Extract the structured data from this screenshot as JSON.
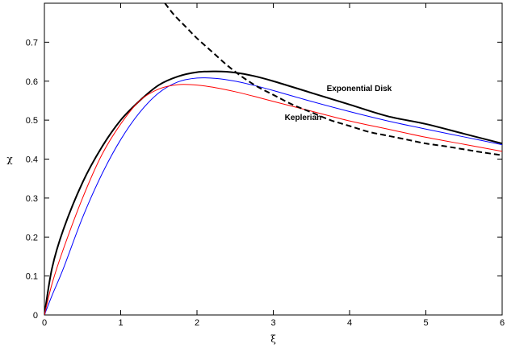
{
  "chart_data": {
    "type": "line",
    "title": "",
    "xlabel": "ξ",
    "ylabel": "χ",
    "xlim": [
      0,
      6
    ],
    "ylim": [
      0,
      0.8
    ],
    "x_ticks": [
      0,
      1,
      2,
      3,
      4,
      5,
      6
    ],
    "x_tick_labels": [
      "0",
      "1",
      "2",
      "3",
      "4",
      "5",
      "6"
    ],
    "y_ticks": [
      0,
      0.1,
      0.2,
      0.3,
      0.4,
      0.5,
      0.6,
      0.7
    ],
    "y_tick_labels": [
      "0",
      "0.1",
      "0.2",
      "0.3",
      "0.4",
      "0.5",
      "0.6",
      "0.7"
    ],
    "grid": false,
    "annotations": [
      {
        "text": "Exponential Disk",
        "x": 3.7,
        "y": 0.575
      },
      {
        "text": "Keplerian",
        "x": 3.15,
        "y": 0.5
      }
    ],
    "series": [
      {
        "color": "#000000",
        "style": "solid",
        "x": [
          0,
          0.1,
          0.25,
          0.5,
          0.75,
          1.0,
          1.25,
          1.5,
          1.75,
          2.0,
          2.25,
          2.5,
          2.75,
          3.0,
          3.5,
          4.0,
          4.5,
          5.0,
          5.5,
          6.0
        ],
        "y": [
          0,
          0.12,
          0.22,
          0.34,
          0.43,
          0.5,
          0.55,
          0.59,
          0.612,
          0.623,
          0.625,
          0.622,
          0.613,
          0.6,
          0.57,
          0.54,
          0.51,
          0.49,
          0.465,
          0.44
        ]
      },
      {
        "color": "#0000ff",
        "style": "solid",
        "x": [
          0,
          0.1,
          0.25,
          0.5,
          0.75,
          1.0,
          1.25,
          1.5,
          1.75,
          2.0,
          2.25,
          2.5,
          2.75,
          3.0,
          3.5,
          4.0,
          4.5,
          5.0,
          5.5,
          6.0
        ],
        "y": [
          0,
          0.05,
          0.12,
          0.25,
          0.36,
          0.45,
          0.52,
          0.57,
          0.598,
          0.608,
          0.607,
          0.6,
          0.589,
          0.576,
          0.548,
          0.522,
          0.498,
          0.477,
          0.457,
          0.437
        ]
      },
      {
        "color": "#ff0000",
        "style": "solid",
        "x": [
          0,
          0.1,
          0.25,
          0.5,
          0.75,
          1.0,
          1.25,
          1.5,
          1.75,
          2.0,
          2.25,
          2.5,
          2.75,
          3.0,
          3.5,
          4.0,
          4.5,
          5.0,
          5.5,
          6.0
        ],
        "y": [
          0,
          0.08,
          0.17,
          0.3,
          0.41,
          0.49,
          0.55,
          0.58,
          0.591,
          0.59,
          0.583,
          0.573,
          0.561,
          0.548,
          0.523,
          0.498,
          0.477,
          0.456,
          0.438,
          0.42
        ]
      },
      {
        "color": "#000000",
        "style": "dashed",
        "x": [
          1.58,
          1.7,
          1.85,
          2.0,
          2.2,
          2.4,
          2.6,
          2.8,
          3.0,
          3.25,
          3.5,
          3.75,
          4.0,
          4.25,
          4.5,
          4.75,
          5.0,
          5.25,
          5.5,
          5.75,
          6.0
        ],
        "y": [
          0.8,
          0.77,
          0.74,
          0.71,
          0.675,
          0.64,
          0.61,
          0.585,
          0.565,
          0.54,
          0.52,
          0.5,
          0.485,
          0.47,
          0.46,
          0.45,
          0.44,
          0.433,
          0.425,
          0.417,
          0.41
        ]
      }
    ]
  }
}
